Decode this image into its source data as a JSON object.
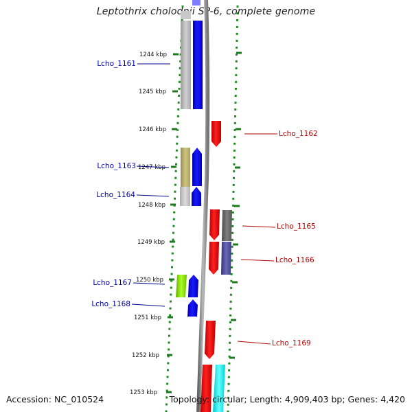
{
  "title": "Leptothrix cholodnii SP-6, complete genome",
  "footer": {
    "accession": "Accession: NC_010524",
    "summary": "Topology: circular; Length: 4,909,403 bp; Genes: 4,420"
  },
  "kbp_ticks": [
    "1244 kbp",
    "1245 kbp",
    "1246 kbp",
    "1247 kbp",
    "1248 kbp",
    "1249 kbp",
    "1250 kbp",
    "1251 kbp",
    "1252 kbp",
    "1253 kbp"
  ],
  "genes_left": [
    {
      "name": "Lcho_1161",
      "color": "#0000cc"
    },
    {
      "name": "Lcho_1163",
      "color": "#0000cc"
    },
    {
      "name": "Lcho_1164",
      "color": "#0000cc"
    },
    {
      "name": "Lcho_1167",
      "color": "#0000cc"
    },
    {
      "name": "Lcho_1168",
      "color": "#0000cc"
    }
  ],
  "genes_right": [
    {
      "name": "Lcho_1162",
      "color": "#cc0000"
    },
    {
      "name": "Lcho_1165",
      "color": "#cc0000"
    },
    {
      "name": "Lcho_1166",
      "color": "#cc0000"
    },
    {
      "name": "Lcho_1169",
      "color": "#cc0000"
    }
  ],
  "colors": {
    "forward_strand": "#0000ff",
    "reverse_strand": "#ff0000",
    "backbone": "#888888",
    "dotted_ring": "#228b22",
    "cog_grey": "#bbbbbb",
    "cog_khaki": "#b8ad6e",
    "cog_lightgrey": "#c8c8c8",
    "cog_darkgrey": "#666666",
    "cog_slate": "#4a4a9a",
    "cog_lime": "#8fe000",
    "cog_cyan": "#00ffff"
  }
}
